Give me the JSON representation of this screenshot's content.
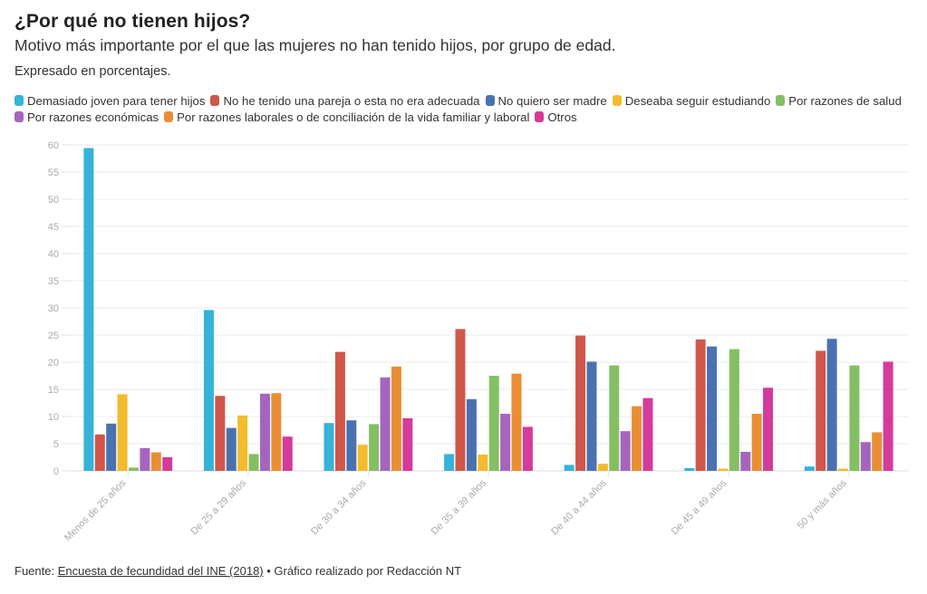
{
  "header": {
    "title": "¿Por qué no tienen hijos?",
    "subtitle": "Motivo más importante por el que las mujeres no han tenido hijos, por grupo de edad.",
    "note": "Expresado en porcentajes."
  },
  "footer": {
    "prefix": "Fuente: ",
    "source_link": "Encuesta de fecundidad del INE (2018)",
    "separator": " • ",
    "credit": "Gráfico realizado por Redacción NT"
  },
  "chart_data": {
    "type": "bar",
    "title": "¿Por qué no tienen hijos?",
    "xlabel": "",
    "ylabel": "",
    "ylim": [
      0,
      60
    ],
    "yticks": [
      0,
      5,
      10,
      15,
      20,
      25,
      30,
      35,
      40,
      45,
      50,
      55,
      60
    ],
    "grid": true,
    "legend_position": "top-left",
    "categories": [
      "Menos de 25 años",
      "De 25 a 29 años",
      "De 30 a 34 años",
      "De 35 a 39 años",
      "De 40 a 44 años",
      "De 45 a 49 años",
      "50 y más años"
    ],
    "series": [
      {
        "name": "Demasiado joven para tener hijos",
        "color": "#36b3d9",
        "values": [
          59.4,
          29.6,
          8.8,
          3.1,
          1.1,
          0.5,
          0.8
        ]
      },
      {
        "name": "No he tenido una pareja o esta no era adecuada",
        "color": "#d0574a",
        "values": [
          6.7,
          13.8,
          21.9,
          26.1,
          24.9,
          24.2,
          22.1
        ]
      },
      {
        "name": "No quiero ser madre",
        "color": "#4a72b0",
        "values": [
          8.7,
          7.9,
          9.3,
          13.2,
          20.1,
          22.9,
          24.3
        ]
      },
      {
        "name": "Deseaba seguir estudiando",
        "color": "#f3bb2d",
        "values": [
          14.1,
          10.2,
          4.8,
          3.0,
          1.3,
          0.4,
          0.4
        ]
      },
      {
        "name": "Por razones de salud",
        "color": "#85bf63",
        "values": [
          0.6,
          3.1,
          8.6,
          17.5,
          19.4,
          22.4,
          19.4
        ]
      },
      {
        "name": "Por razones económicas",
        "color": "#a565bf",
        "values": [
          4.2,
          14.2,
          17.2,
          10.5,
          7.3,
          3.5,
          5.3
        ]
      },
      {
        "name": "Por razones laborales o de conciliación de la vida familiar y laboral",
        "color": "#ea8e35",
        "values": [
          3.4,
          14.3,
          19.2,
          17.9,
          11.9,
          10.5,
          7.1
        ]
      },
      {
        "name": "Otros",
        "color": "#d63a9b",
        "values": [
          2.5,
          6.3,
          9.7,
          8.1,
          13.4,
          15.3,
          20.1
        ]
      }
    ]
  }
}
